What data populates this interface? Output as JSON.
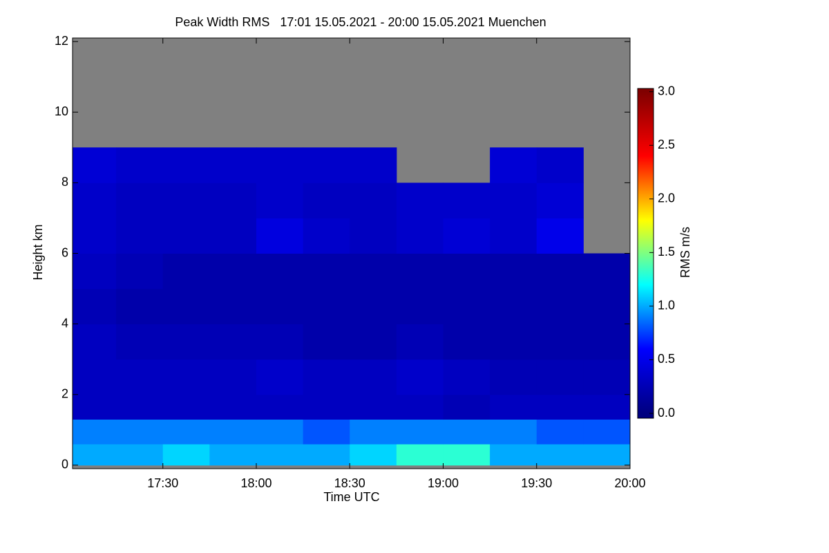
{
  "chart_data": {
    "type": "heatmap",
    "title": "Peak Width RMS   17:01 15.05.2021 - 20:00 15.05.2021 Muenchen",
    "x_label": "Time UTC",
    "y_label": "Height km",
    "colorbar_label": "RMS m/s",
    "xlim": [
      1021,
      1200
    ],
    "xticks": [
      {
        "value": 1050,
        "label": "17:30"
      },
      {
        "value": 1080,
        "label": "18:00"
      },
      {
        "value": 1110,
        "label": "18:30"
      },
      {
        "value": 1140,
        "label": "19:00"
      },
      {
        "value": 1170,
        "label": "19:30"
      },
      {
        "value": 1200,
        "label": "20:00"
      }
    ],
    "ylim": [
      -0.1,
      12.1
    ],
    "yticks": [
      0,
      2,
      4,
      6,
      8,
      10,
      12
    ],
    "clim": [
      -0.045,
      3.03
    ],
    "cticks": [
      {
        "value": 0,
        "label": "0.0"
      },
      {
        "value": 0.5,
        "label": "0.5"
      },
      {
        "value": 1,
        "label": "1.0"
      },
      {
        "value": 1.5,
        "label": "1.5"
      },
      {
        "value": 2,
        "label": "2.0"
      },
      {
        "value": 2.5,
        "label": "2.5"
      },
      {
        "value": 3,
        "label": "3.0"
      }
    ],
    "colormap": [
      "#000080",
      "#0000ff",
      "#00ffff",
      "#ffff00",
      "#ff0000",
      "#800000"
    ],
    "missing_color": "#808080",
    "x_edges": [
      1021,
      1035,
      1050,
      1065,
      1080,
      1095,
      1110,
      1125,
      1140,
      1155,
      1170,
      1185,
      1200
    ],
    "y_edges": [
      0,
      0.6,
      1.3,
      2,
      3,
      4,
      5,
      6,
      7,
      8,
      9,
      12.1
    ],
    "z": [
      [
        1.0,
        1.0,
        1.1,
        1.0,
        1.0,
        1.0,
        1.1,
        1.3,
        1.3,
        1.0,
        1.0,
        1.0
      ],
      [
        0.9,
        0.9,
        0.9,
        0.9,
        0.9,
        0.8,
        0.9,
        0.9,
        0.9,
        0.9,
        0.8,
        0.8
      ],
      [
        0.3,
        0.3,
        0.3,
        0.3,
        0.3,
        0.3,
        0.3,
        0.3,
        0.25,
        0.3,
        0.3,
        0.3
      ],
      [
        0.3,
        0.3,
        0.3,
        0.3,
        0.35,
        0.3,
        0.3,
        0.35,
        0.3,
        0.25,
        0.25,
        0.25
      ],
      [
        0.3,
        0.25,
        0.25,
        0.25,
        0.25,
        0.2,
        0.2,
        0.25,
        0.2,
        0.2,
        0.2,
        0.2
      ],
      [
        0.25,
        0.2,
        0.2,
        0.2,
        0.2,
        0.2,
        0.2,
        0.2,
        0.2,
        0.2,
        0.2,
        0.2
      ],
      [
        0.3,
        0.25,
        0.2,
        0.2,
        0.2,
        0.2,
        0.2,
        0.2,
        0.2,
        0.2,
        0.2,
        0.2
      ],
      [
        0.35,
        0.3,
        0.3,
        0.3,
        0.45,
        0.35,
        0.3,
        0.35,
        0.4,
        0.35,
        0.5,
        null
      ],
      [
        0.35,
        0.3,
        0.3,
        0.3,
        0.35,
        0.3,
        0.3,
        0.35,
        0.35,
        0.35,
        0.4,
        null
      ],
      [
        0.4,
        0.35,
        0.35,
        0.35,
        0.35,
        0.35,
        0.35,
        null,
        null,
        0.4,
        0.35,
        null
      ],
      [
        null,
        null,
        null,
        null,
        null,
        null,
        null,
        null,
        null,
        null,
        null,
        null
      ]
    ]
  }
}
